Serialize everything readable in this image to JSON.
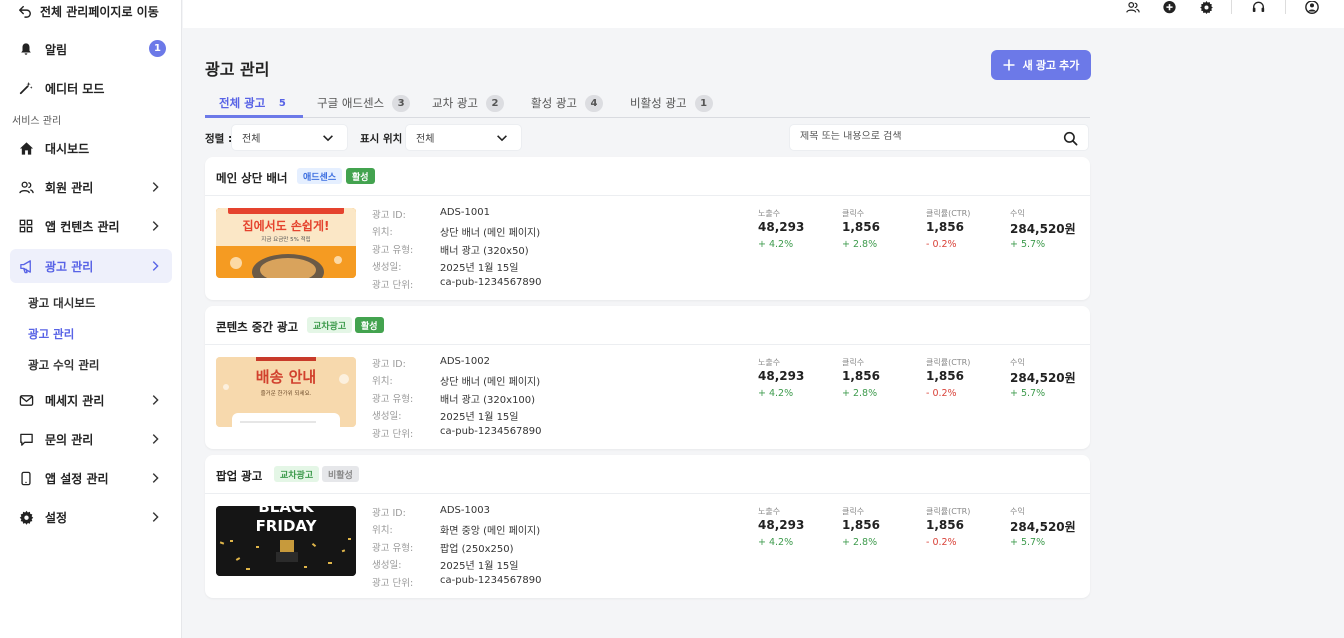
{
  "sidebar": {
    "back_label": "전체 관리페이지로 이동",
    "items": [
      {
        "label": "알림",
        "badge": "1"
      },
      {
        "label": "에디터 모드"
      },
      {
        "label": "대시보드"
      },
      {
        "label": "회원 관리"
      },
      {
        "label": "앱 컨텐츠 관리"
      },
      {
        "label": "광고 관리"
      },
      {
        "label": "메세지 관리"
      },
      {
        "label": "문의 관리"
      },
      {
        "label": "앱 설정 관리"
      },
      {
        "label": "설정"
      }
    ],
    "section_label": "서비스 관리",
    "sub_items": [
      {
        "label": "광고 대시보드"
      },
      {
        "label": "광고 관리"
      },
      {
        "label": "광고 수익 관리"
      }
    ]
  },
  "main": {
    "title": "광고 관리",
    "new_button": "새 광고 추가",
    "tabs": [
      {
        "label": "전체 광고",
        "count": "5"
      },
      {
        "label": "구글 애드센스",
        "count": "3"
      },
      {
        "label": "교차 광고",
        "count": "2"
      },
      {
        "label": "활성 광고",
        "count": "4"
      },
      {
        "label": "비활성 광고",
        "count": "1"
      }
    ],
    "filters": {
      "sort_label": "정렬 :",
      "sort_value": "전체",
      "location_label": "표시 위치 :",
      "location_value": "전체",
      "search_placeholder": "제목 또는 내용으로 검색"
    },
    "info_keys": {
      "id": "광고 ID:",
      "location": "위치:",
      "type": "광고 유형:",
      "created": "생성일:",
      "unit": "광고 단위:"
    },
    "metric_labels": {
      "impressions": "노출수",
      "clicks": "클릭수",
      "ctr": "클릭률(CTR)",
      "revenue": "수익"
    },
    "cards": [
      {
        "title": "메인 상단 배너",
        "tags": [
          "애드센스",
          "활성"
        ],
        "thumb_text": [
          "집에서도 손쉽게!",
          "지금 요금만 5% 적립"
        ],
        "id": "ADS-1001",
        "location": "상단 배너 (메인 페이지)",
        "type": "배너 광고 (320x50)",
        "created": "2025년 1월 15일",
        "unit": "ca-pub-1234567890",
        "impressions": "48,293",
        "impressions_delta": "+ 4.2%",
        "clicks": "1,856",
        "clicks_delta": "+ 2.8%",
        "ctr": "1,856",
        "ctr_delta": "- 0.2%",
        "revenue": "284,520원",
        "revenue_delta": "+ 5.7%"
      },
      {
        "title": "콘텐츠 중간 광고",
        "tags": [
          "교차광고",
          "활성"
        ],
        "thumb_text": [
          "배송 안내",
          "즐거운 한가위 되세요."
        ],
        "id": "ADS-1002",
        "location": "상단 배너 (메인 페이지)",
        "type": "배너 광고 (320x100)",
        "created": "2025년 1월 15일",
        "unit": "ca-pub-1234567890",
        "impressions": "48,293",
        "impressions_delta": "+ 4.2%",
        "clicks": "1,856",
        "clicks_delta": "+ 2.8%",
        "ctr": "1,856",
        "ctr_delta": "- 0.2%",
        "revenue": "284,520원",
        "revenue_delta": "+ 5.7%"
      },
      {
        "title": "팝업 광고",
        "tags": [
          "교차광고",
          "비활성"
        ],
        "thumb_text": [
          "BLACK",
          "FRIDAY"
        ],
        "id": "ADS-1003",
        "location": "화면 중앙 (메인 페이지)",
        "type": "팝업 (250x250)",
        "created": "2025년 1월 15일",
        "unit": "ca-pub-1234567890",
        "impressions": "48,293",
        "impressions_delta": "+ 4.2%",
        "clicks": "1,856",
        "clicks_delta": "+ 2.8%",
        "ctr": "1,856",
        "ctr_delta": "- 0.2%",
        "revenue": "284,520원",
        "revenue_delta": "+ 5.7%"
      }
    ]
  },
  "colors": {
    "accent": "#6c79e8",
    "positive": "#3e9b4d",
    "negative": "#d9433a"
  }
}
